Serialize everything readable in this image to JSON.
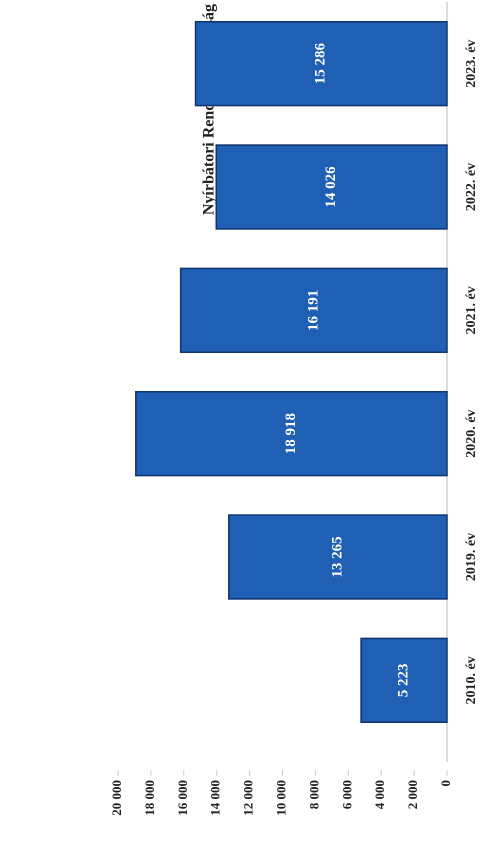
{
  "chart_data": {
    "type": "bar",
    "title": "Nyírbátori Rendőrkapitányság",
    "categories": [
      "2010. év",
      "2019. év",
      "2020. év",
      "2021. év",
      "2022. év",
      "2023. év"
    ],
    "values": [
      5223,
      13265,
      18918,
      16191,
      14026,
      15286
    ],
    "value_labels": [
      "5 223",
      "13 265",
      "18 918",
      "16 191",
      "14 026",
      "15 286"
    ],
    "color": "#1f5fb4",
    "ylim": [
      0,
      20000
    ],
    "yticks": [
      0,
      {
        "value": 2000,
        "label": "2 000"
      },
      {
        "value": 4000,
        "label": "4 000"
      },
      {
        "value": 6000,
        "label": "6 000"
      },
      {
        "value": 8000,
        "label": "8 000"
      },
      {
        "value": 10000,
        "label": "10 000"
      },
      {
        "value": 12000,
        "label": "12 000"
      },
      {
        "value": 14000,
        "label": "14 000"
      },
      {
        "value": 16000,
        "label": "16 000"
      },
      {
        "value": 18000,
        "label": "18 000"
      },
      {
        "value": 20000,
        "label": "20 000"
      }
    ]
  }
}
